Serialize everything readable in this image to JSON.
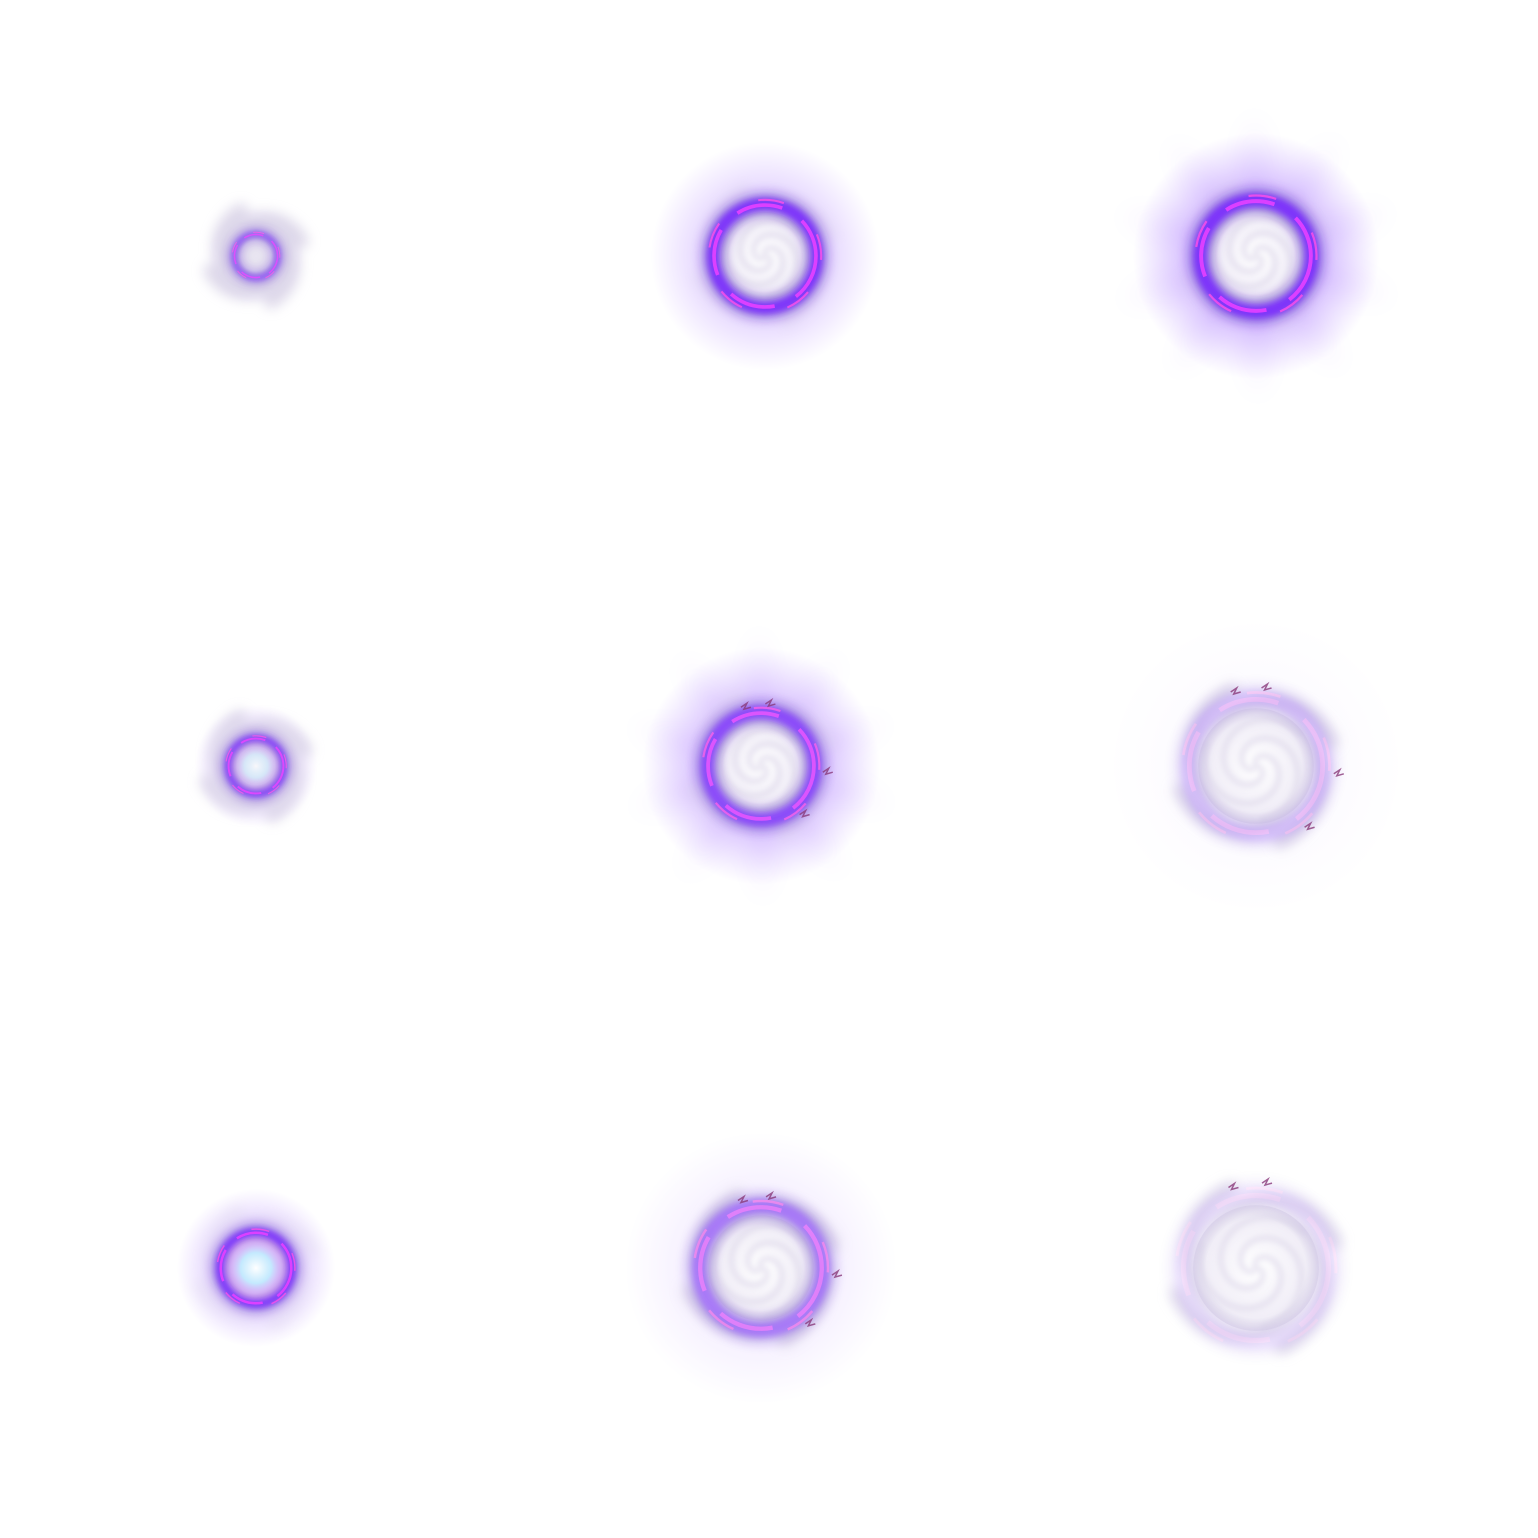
{
  "sprite_sheet": {
    "grid": {
      "columns": 3,
      "rows": 3
    },
    "colors": {
      "background": "#ffffff",
      "violet": "#7a2cff",
      "deep_violet": "#4b14c8",
      "magenta": "#e040ff",
      "hot_pink": "#ff4fe8",
      "core_white": "#ffffff",
      "cyan_glow": "#bfe9ff",
      "smoke": "#d8d2e6",
      "crack": "#8a3a7a"
    },
    "frames": [
      {
        "id": "frame-1",
        "stage": "vortex-spawn",
        "intensity": 0.9,
        "glow": 0.25,
        "core_flash": 0.0,
        "smoke": 0.85,
        "cracks": 0,
        "rays": 0
      },
      {
        "id": "frame-2",
        "stage": "portal-open",
        "intensity": 1.0,
        "glow": 0.55,
        "core_flash": 0.0,
        "smoke": 0.35,
        "cracks": 0,
        "rays": 0
      },
      {
        "id": "frame-3",
        "stage": "portal-flare",
        "intensity": 1.0,
        "glow": 0.8,
        "core_flash": 0.0,
        "smoke": 0.25,
        "cracks": 0,
        "rays": 1
      },
      {
        "id": "frame-4",
        "stage": "core-charge",
        "intensity": 0.95,
        "glow": 0.45,
        "core_flash": 0.7,
        "smoke": 0.8,
        "cracks": 0,
        "rays": 0
      },
      {
        "id": "frame-5",
        "stage": "portal-crackle",
        "intensity": 0.85,
        "glow": 0.7,
        "core_flash": 0.0,
        "smoke": 0.45,
        "cracks": 4,
        "rays": 1
      },
      {
        "id": "frame-6",
        "stage": "portal-fade",
        "intensity": 0.25,
        "glow": 0.05,
        "core_flash": 0.0,
        "smoke": 0.75,
        "cracks": 4,
        "rays": 0
      },
      {
        "id": "frame-7",
        "stage": "core-burst",
        "intensity": 1.0,
        "glow": 0.55,
        "core_flash": 1.0,
        "smoke": 0.3,
        "cracks": 0,
        "rays": 0
      },
      {
        "id": "frame-8",
        "stage": "portal-dissipate",
        "intensity": 0.6,
        "glow": 0.2,
        "core_flash": 0.0,
        "smoke": 0.8,
        "cracks": 4,
        "rays": 0
      },
      {
        "id": "frame-9",
        "stage": "portal-vanish",
        "intensity": 0.12,
        "glow": 0.0,
        "core_flash": 0.0,
        "smoke": 0.7,
        "cracks": 2,
        "rays": 0
      }
    ]
  }
}
